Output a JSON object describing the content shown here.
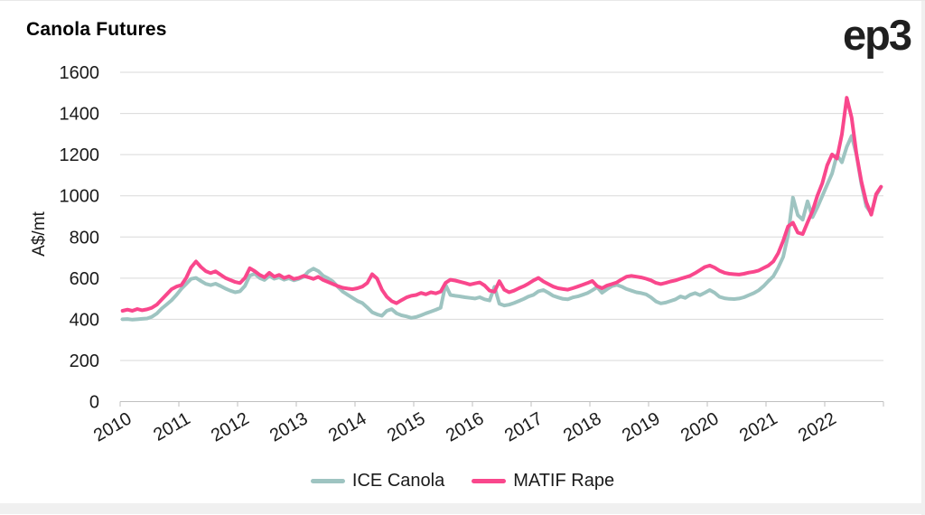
{
  "header": {
    "logo_text": "ep3"
  },
  "chart_data": {
    "type": "line",
    "title": "Canola Futures",
    "xlabel": "",
    "ylabel": "A$/mt",
    "ylim": [
      0,
      1600
    ],
    "y_ticks": [
      0,
      200,
      400,
      600,
      800,
      1000,
      1200,
      1400,
      1600
    ],
    "x_ticks": [
      2010,
      2011,
      2012,
      2013,
      2014,
      2015,
      2016,
      2017,
      2018,
      2019,
      2020,
      2021,
      2022
    ],
    "x_range": [
      2010,
      2023
    ],
    "frequency": "monthly",
    "grid": "horizontal-only",
    "legend_position": "bottom-center",
    "colors": {
      "grid": "#d9d9d9",
      "axis": "#bfbfbf",
      "text": "#1a1a1a"
    },
    "series": [
      {
        "name": "ICE Canola",
        "color": "#9ec4c1",
        "values": [
          400,
          401,
          398,
          400,
          402,
          404,
          412,
          428,
          452,
          472,
          492,
          518,
          548,
          572,
          596,
          601,
          586,
          572,
          566,
          573,
          562,
          549,
          539,
          531,
          536,
          562,
          612,
          621,
          601,
          591,
          611,
          597,
          604,
          592,
          599,
          589,
          596,
          606,
          632,
          646,
          634,
          611,
          599,
          583,
          558,
          534,
          519,
          504,
          489,
          479,
          458,
          434,
          424,
          417,
          441,
          449,
          429,
          419,
          414,
          407,
          411,
          419,
          429,
          437,
          446,
          456,
          568,
          518,
          514,
          511,
          507,
          504,
          501,
          507,
          497,
          491,
          558,
          476,
          467,
          471,
          479,
          489,
          499,
          511,
          519,
          536,
          542,
          529,
          514,
          506,
          499,
          497,
          506,
          511,
          519,
          527,
          541,
          556,
          529,
          546,
          561,
          567,
          559,
          547,
          539,
          531,
          527,
          521,
          506,
          487,
          477,
          481,
          489,
          497,
          511,
          504,
          519,
          527,
          517,
          529,
          542,
          529,
          509,
          502,
          499,
          498,
          501,
          507,
          517,
          527,
          541,
          561,
          586,
          609,
          651,
          703,
          808,
          991,
          906,
          884,
          973,
          896,
          944,
          999,
          1054,
          1108,
          1198,
          1163,
          1238,
          1291,
          1199,
          1057,
          949,
          914,
          1002,
          1043
        ]
      },
      {
        "name": "MATIF Rape",
        "color": "#f9478c",
        "values": [
          441,
          447,
          441,
          450,
          444,
          448,
          456,
          471,
          496,
          521,
          546,
          559,
          566,
          601,
          652,
          681,
          654,
          634,
          624,
          633,
          617,
          601,
          591,
          581,
          576,
          601,
          648,
          634,
          616,
          604,
          626,
          607,
          616,
          601,
          609,
          596,
          601,
          611,
          604,
          596,
          606,
          591,
          581,
          571,
          561,
          553,
          549,
          546,
          551,
          559,
          576,
          619,
          598,
          544,
          509,
          488,
          478,
          493,
          506,
          514,
          518,
          528,
          521,
          531,
          526,
          534,
          577,
          592,
          588,
          582,
          576,
          569,
          574,
          579,
          564,
          539,
          534,
          585,
          544,
          531,
          539,
          551,
          561,
          574,
          589,
          601,
          584,
          571,
          559,
          551,
          547,
          544,
          551,
          559,
          567,
          576,
          586,
          561,
          551,
          564,
          571,
          579,
          594,
          607,
          611,
          607,
          603,
          597,
          589,
          577,
          571,
          577,
          584,
          589,
          597,
          604,
          611,
          624,
          639,
          654,
          661,
          651,
          636,
          626,
          621,
          619,
          617,
          621,
          627,
          631,
          637,
          649,
          661,
          681,
          721,
          781,
          851,
          869,
          821,
          814,
          871,
          926,
          1001,
          1061,
          1148,
          1201,
          1181,
          1299,
          1476,
          1379,
          1201,
          1069,
          969,
          908,
          1008,
          1044
        ]
      }
    ]
  }
}
